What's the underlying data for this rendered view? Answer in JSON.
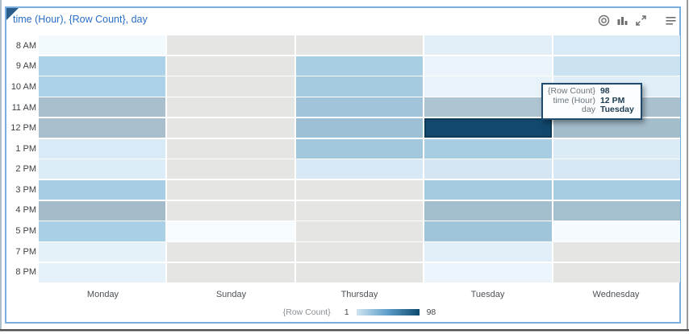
{
  "window": {
    "title": "time (Hour), {Row Count}, day",
    "toolbar_icons": [
      "target-icon",
      "bar-chart-icon",
      "expand-icon",
      "menu-icon"
    ]
  },
  "colors": {
    "panel_border": "#79aede",
    "corner_triangle": "#2b5c8a",
    "title_text": "#2a6ec7",
    "icon_gray": "#6e6e6e",
    "no_data_cell": "#e5e5e4",
    "selected_cell_fill": "#11486c",
    "selected_cell_border": "#0a3a57",
    "tooltip_border": "#1d4a6d"
  },
  "tooltip": {
    "rows": [
      {
        "label": "{Row Count}",
        "value": "98"
      },
      {
        "label": "time (Hour)",
        "value": "12 PM"
      },
      {
        "label": "day",
        "value": "Tuesday"
      }
    ]
  },
  "chart_data": {
    "type": "heatmap",
    "title": "time (Hour), {Row Count}, day",
    "xlabel": "day",
    "ylabel": "time (Hour)",
    "measure": "{Row Count}",
    "x_categories": [
      "Monday",
      "Sunday",
      "Thursday",
      "Tuesday",
      "Wednesday"
    ],
    "y_categories": [
      "8 AM",
      "9 AM",
      "10 AM",
      "11 AM",
      "12 PM",
      "1 PM",
      "2 PM",
      "3 PM",
      "4 PM",
      "5 PM",
      "7 PM",
      "8 PM"
    ],
    "legend": {
      "label": "{Row Count}",
      "min": "1",
      "max": "98",
      "gradient": [
        "#cfe4f1",
        "#5b9dc9",
        "#0d4a6e"
      ],
      "position": "bottom"
    },
    "selected_cell": {
      "day": "Tuesday",
      "hour": "12 PM",
      "value": 98
    },
    "rows": [
      {
        "hour": "8 AM",
        "cells": [
          {
            "day": "Monday",
            "value": 2,
            "color": "#f3fafd"
          },
          {
            "day": "Sunday",
            "value": null,
            "color": "#e5e5e4"
          },
          {
            "day": "Thursday",
            "value": null,
            "color": "#e5e5e4"
          },
          {
            "day": "Tuesday",
            "value": 7,
            "color": "#e2eff8"
          },
          {
            "day": "Wednesday",
            "value": 10,
            "color": "#d8eaf5"
          }
        ]
      },
      {
        "hour": "9 AM",
        "cells": [
          {
            "day": "Monday",
            "value": 25,
            "color": "#abd2e8"
          },
          {
            "day": "Sunday",
            "value": null,
            "color": "#e5e5e4"
          },
          {
            "day": "Thursday",
            "value": 26,
            "color": "#a8cee4"
          },
          {
            "day": "Tuesday",
            "value": 4,
            "color": "#ebf4fa"
          },
          {
            "day": "Wednesday",
            "value": 15,
            "color": "#cbe2f0"
          }
        ]
      },
      {
        "hour": "10 AM",
        "cells": [
          {
            "day": "Monday",
            "value": 25,
            "color": "#aad1e7"
          },
          {
            "day": "Sunday",
            "value": null,
            "color": "#e5e5e4"
          },
          {
            "day": "Thursday",
            "value": 27,
            "color": "#a6cbe1"
          },
          {
            "day": "Tuesday",
            "value": 5,
            "color": "#e8f3f9"
          },
          {
            "day": "Wednesday",
            "value": 8,
            "color": "#dfeef7"
          }
        ]
      },
      {
        "hour": "11 AM",
        "cells": [
          {
            "day": "Monday",
            "value": 33,
            "color": "#a9bfcd"
          },
          {
            "day": "Sunday",
            "value": null,
            "color": "#e5e5e4"
          },
          {
            "day": "Thursday",
            "value": 30,
            "color": "#a2c4da"
          },
          {
            "day": "Tuesday",
            "value": 32,
            "color": "#adc4d2"
          },
          {
            "day": "Wednesday",
            "value": 32,
            "color": "#a9c1cf"
          }
        ]
      },
      {
        "hour": "12 PM",
        "cells": [
          {
            "day": "Monday",
            "value": 33,
            "color": "#a8becc"
          },
          {
            "day": "Sunday",
            "value": null,
            "color": "#e5e5e4"
          },
          {
            "day": "Thursday",
            "value": 31,
            "color": "#9dc0d5"
          },
          {
            "day": "Tuesday",
            "value": 98,
            "color": "#11486c",
            "selected": true
          },
          {
            "day": "Wednesday",
            "value": 34,
            "color": "#a4bdcb"
          }
        ]
      },
      {
        "hour": "1 PM",
        "cells": [
          {
            "day": "Monday",
            "value": 10,
            "color": "#d8eaf6"
          },
          {
            "day": "Sunday",
            "value": null,
            "color": "#e5e5e4"
          },
          {
            "day": "Thursday",
            "value": 28,
            "color": "#a3c8de"
          },
          {
            "day": "Tuesday",
            "value": 26,
            "color": "#a8cde3"
          },
          {
            "day": "Wednesday",
            "value": 9,
            "color": "#dbecf6"
          }
        ]
      },
      {
        "hour": "2 PM",
        "cells": [
          {
            "day": "Monday",
            "value": 9,
            "color": "#dcedf7"
          },
          {
            "day": "Sunday",
            "value": null,
            "color": "#e5e5e4"
          },
          {
            "day": "Thursday",
            "value": 10,
            "color": "#d7e9f4"
          },
          {
            "day": "Tuesday",
            "value": 12,
            "color": "#d3e6f2"
          },
          {
            "day": "Wednesday",
            "value": 11,
            "color": "#d5e8f3"
          }
        ]
      },
      {
        "hour": "3 PM",
        "cells": [
          {
            "day": "Monday",
            "value": 26,
            "color": "#a7cde4"
          },
          {
            "day": "Sunday",
            "value": null,
            "color": "#e5e5e4"
          },
          {
            "day": "Thursday",
            "value": null,
            "color": "#e5e5e4"
          },
          {
            "day": "Tuesday",
            "value": 27,
            "color": "#a5cbe1"
          },
          {
            "day": "Wednesday",
            "value": 26,
            "color": "#a7cde3"
          }
        ]
      },
      {
        "hour": "4 PM",
        "cells": [
          {
            "day": "Monday",
            "value": 34,
            "color": "#a4bcca"
          },
          {
            "day": "Sunday",
            "value": null,
            "color": "#e5e5e4"
          },
          {
            "day": "Thursday",
            "value": null,
            "color": "#e5e5e4"
          },
          {
            "day": "Tuesday",
            "value": 33,
            "color": "#a3bfcd"
          },
          {
            "day": "Wednesday",
            "value": 32,
            "color": "#a4c0ce"
          }
        ]
      },
      {
        "hour": "5 PM",
        "cells": [
          {
            "day": "Monday",
            "value": 25,
            "color": "#a8cfe5"
          },
          {
            "day": "Sunday",
            "value": 1,
            "color": "#f5fbfe"
          },
          {
            "day": "Thursday",
            "value": null,
            "color": "#e5e5e4"
          },
          {
            "day": "Tuesday",
            "value": 30,
            "color": "#a0c5db"
          },
          {
            "day": "Wednesday",
            "value": 2,
            "color": "#f4fafd"
          }
        ]
      },
      {
        "hour": "7 PM",
        "cells": [
          {
            "day": "Monday",
            "value": 6,
            "color": "#e5f1f9"
          },
          {
            "day": "Sunday",
            "value": null,
            "color": "#e5e5e4"
          },
          {
            "day": "Thursday",
            "value": null,
            "color": "#e5e5e4"
          },
          {
            "day": "Tuesday",
            "value": 7,
            "color": "#e2eff8"
          },
          {
            "day": "Wednesday",
            "value": null,
            "color": "#e5e5e4"
          }
        ]
      },
      {
        "hour": "8 PM",
        "cells": [
          {
            "day": "Monday",
            "value": 6,
            "color": "#e6f2f9"
          },
          {
            "day": "Sunday",
            "value": null,
            "color": "#e5e5e4"
          },
          {
            "day": "Thursday",
            "value": null,
            "color": "#e5e5e4"
          },
          {
            "day": "Tuesday",
            "value": 4,
            "color": "#ecf5fb"
          },
          {
            "day": "Wednesday",
            "value": null,
            "color": "#e5e5e4"
          }
        ]
      }
    ]
  }
}
